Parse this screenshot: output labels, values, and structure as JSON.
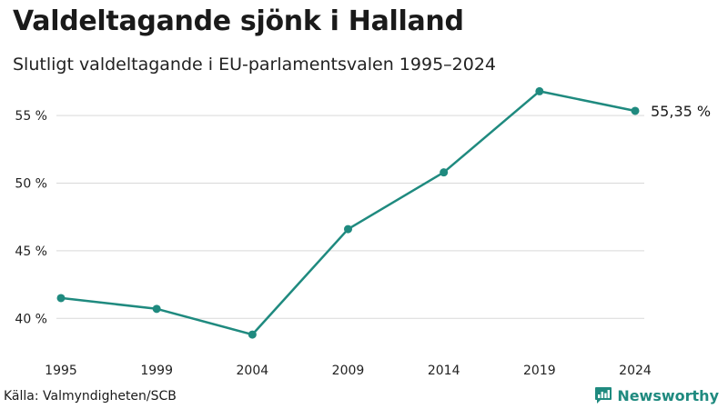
{
  "title": "Valdeltagande sjönk i Halland",
  "subtitle": "Slutligt valdeltagande i EU-parlamentsvalen 1995–2024",
  "source": "Källa: Valmyndigheten/SCB",
  "brand": {
    "name": "Newsworthy",
    "icon": "newsworthy-logo-icon",
    "color": "#1f8a7f"
  },
  "colors": {
    "line": "#1f8a7f",
    "grid": "#d9d9d9"
  },
  "chart_data": {
    "type": "line",
    "x": [
      "1995",
      "1999",
      "2004",
      "2009",
      "2014",
      "2019",
      "2024"
    ],
    "values": [
      41.5,
      40.7,
      38.8,
      46.6,
      50.8,
      56.8,
      55.35
    ],
    "ylim": [
      38,
      57.5
    ],
    "yticks": [
      40,
      45,
      50,
      55
    ],
    "ytick_labels": [
      "40 %",
      "45 %",
      "50 %",
      "55 %"
    ],
    "end_label": "55,35 %",
    "grid": true,
    "legend": "none"
  }
}
